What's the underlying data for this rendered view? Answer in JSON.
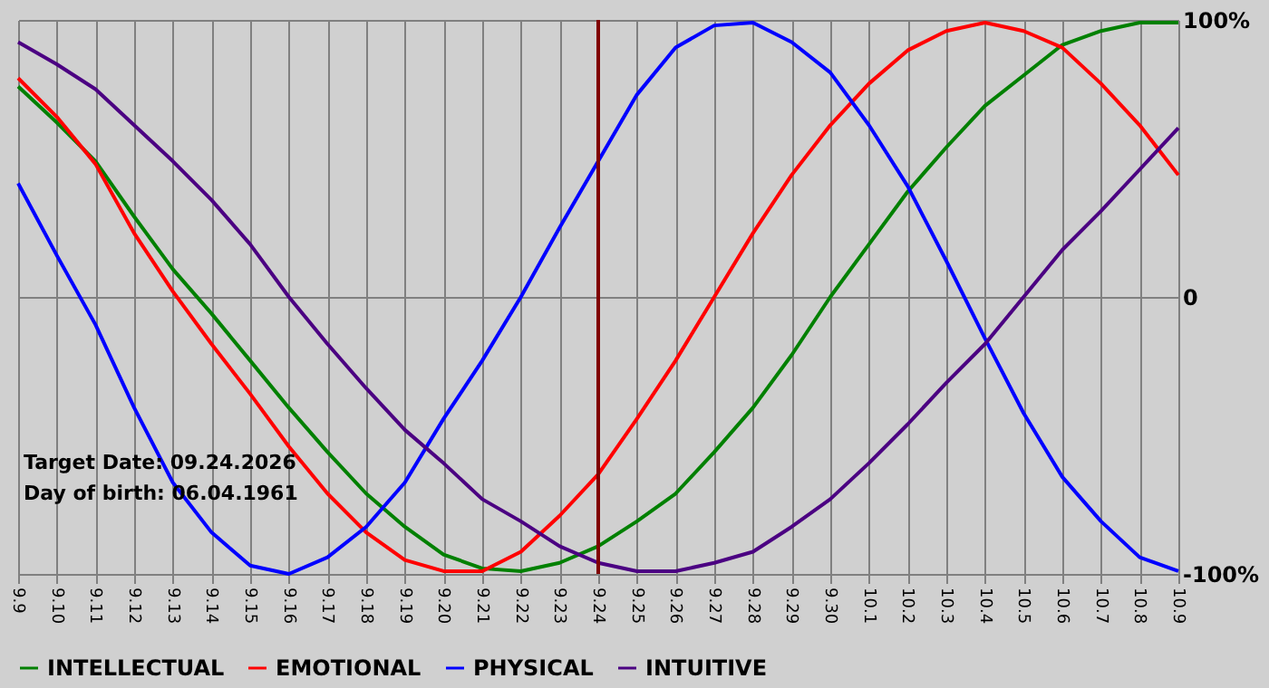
{
  "chart_data": {
    "type": "line",
    "categories": [
      "9.9",
      "9.10",
      "9.11",
      "9.12",
      "9.13",
      "9.14",
      "9.15",
      "9.16",
      "9.17",
      "9.18",
      "9.19",
      "9.20",
      "9.21",
      "9.22",
      "9.23",
      "9.24",
      "9.25",
      "9.26",
      "9.27",
      "9.28",
      "9.29",
      "9.30",
      "10.1",
      "10.2",
      "10.3",
      "10.4",
      "10.5",
      "10.6",
      "10.7",
      "10.8",
      "10.9"
    ],
    "series": [
      {
        "name": "INTELLECTUAL",
        "color": "#008000",
        "values": [
          76,
          63,
          49,
          29,
          10,
          -6,
          -23,
          -40,
          -56,
          -71,
          -83,
          -93,
          -98,
          -99,
          -96,
          -90,
          -81,
          -71,
          -56,
          -40,
          -21,
          0,
          19,
          38,
          54,
          69,
          80,
          91,
          96,
          99,
          99
        ]
      },
      {
        "name": "EMOTIONAL",
        "color": "#ff0000",
        "values": [
          79,
          65,
          48,
          23,
          2,
          -17,
          -35,
          -54,
          -71,
          -85,
          -95,
          -99,
          -99,
          -92,
          -79,
          -64,
          -44,
          -23,
          0,
          23,
          44,
          62,
          77,
          89,
          96,
          99,
          96,
          90,
          77,
          62,
          44
        ]
      },
      {
        "name": "PHYSICAL",
        "color": "#0000ff",
        "values": [
          41,
          15,
          -10,
          -40,
          -67,
          -85,
          -97,
          -100,
          -94,
          -83,
          -67,
          -44,
          -23,
          0,
          25,
          49,
          73,
          90,
          98,
          99,
          92,
          81,
          62,
          40,
          13,
          -15,
          -42,
          -65,
          -81,
          -94,
          -99
        ]
      },
      {
        "name": "INTUITIVE",
        "color": "#4b0082",
        "values": [
          92,
          84,
          75,
          62,
          49,
          35,
          19,
          0,
          -17,
          -33,
          -48,
          -60,
          -73,
          -81,
          -90,
          -96,
          -99,
          -99,
          -96,
          -92,
          -83,
          -73,
          -60,
          -46,
          -31,
          -17,
          0,
          17,
          31,
          46,
          61
        ]
      }
    ],
    "ylim": [
      -100,
      100
    ],
    "yticks": [
      {
        "value": 100,
        "label": "100%"
      },
      0,
      {
        "value": -100,
        "label": "-100%"
      }
    ],
    "grid": true,
    "line_style": "solid",
    "legend": "bottom",
    "ref_lines": [
      {
        "axis": "x",
        "value": "9.24",
        "color": "#800000"
      }
    ],
    "annotations": [
      "Target Date: 09.24.2026",
      "Day of birth: 06.04.1961"
    ]
  }
}
